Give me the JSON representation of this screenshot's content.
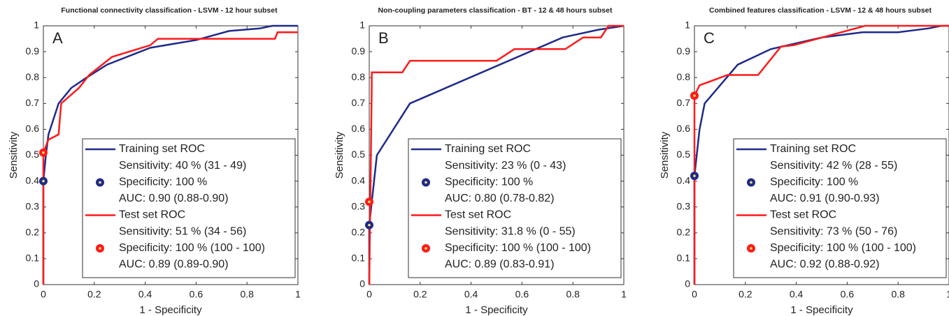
{
  "chart_data": [
    {
      "type": "line",
      "title": "Functional connectivity classification - LSVM - 12 hour subset",
      "label": "A",
      "xlabel": "1 - Specificity",
      "ylabel": "Sensitivity",
      "xlim": [
        0,
        1
      ],
      "ylim": [
        0,
        1
      ],
      "xticks": [
        0,
        0.2,
        0.4,
        0.6,
        0.8,
        1
      ],
      "yticks": [
        0,
        0.1,
        0.2,
        0.3,
        0.4,
        0.5,
        0.6,
        0.7,
        0.8,
        0.9,
        1
      ],
      "series": [
        {
          "name": "Training set ROC",
          "color": "#1f2a8c",
          "x": [
            0,
            0,
            0.01,
            0.02,
            0.06,
            0.11,
            0.17,
            0.25,
            0.42,
            0.6,
            0.73,
            0.85,
            0.9,
            0.95,
            1
          ],
          "y": [
            0,
            0.4,
            0.5,
            0.58,
            0.7,
            0.76,
            0.8,
            0.85,
            0.915,
            0.945,
            0.98,
            0.99,
            1,
            1,
            1
          ],
          "point": {
            "x": 0,
            "y": 0.4
          },
          "legend_lines": [
            "Sensitivity: 40 % (31 - 49)",
            "Specificity: 100 %",
            "AUC: 0.90 (0.88-0.90)"
          ]
        },
        {
          "name": "Test set ROC",
          "color": "#ff1a1a",
          "x": [
            0,
            0,
            0.02,
            0.06,
            0.07,
            0.14,
            0.18,
            0.27,
            0.42,
            0.45,
            0.91,
            0.92,
            1
          ],
          "y": [
            0,
            0.51,
            0.56,
            0.58,
            0.7,
            0.76,
            0.81,
            0.88,
            0.925,
            0.95,
            0.95,
            0.975,
            0.975
          ],
          "point": {
            "x": 0,
            "y": 0.51
          },
          "legend_lines": [
            "Sensitivity: 51 % (34 - 56)",
            "Specificity: 100 % (100 - 100)",
            "AUC: 0.89 (0.89-0.90)"
          ]
        }
      ]
    },
    {
      "type": "line",
      "title": "Non-coupling parameters classification - BT - 12 & 48 hours subset",
      "label": "B",
      "xlabel": "1 - Specificity",
      "ylabel": "Sensitivity",
      "xlim": [
        0,
        1
      ],
      "ylim": [
        0,
        1
      ],
      "xticks": [
        0,
        0.2,
        0.4,
        0.6,
        0.8,
        1
      ],
      "yticks": [
        0,
        0.1,
        0.2,
        0.3,
        0.4,
        0.5,
        0.6,
        0.7,
        0.8,
        0.9,
        1
      ],
      "series": [
        {
          "name": "Training set ROC",
          "color": "#1f2a8c",
          "x": [
            0,
            0,
            0.03,
            0.16,
            0.76,
            0.9,
            1
          ],
          "y": [
            0,
            0.23,
            0.5,
            0.7,
            0.955,
            0.985,
            1
          ],
          "point": {
            "x": 0,
            "y": 0.23
          },
          "legend_lines": [
            "Sensitivity: 23 % (0 - 43)",
            "Specificity: 100 %",
            "AUC: 0.80 (0.78-0.82)"
          ]
        },
        {
          "name": "Test set ROC",
          "color": "#ff1a1a",
          "x": [
            0,
            0.01,
            0.01,
            0.13,
            0.16,
            0.5,
            0.57,
            0.77,
            0.84,
            0.91,
            0.94,
            1
          ],
          "y": [
            0,
            0.77,
            0.82,
            0.82,
            0.865,
            0.865,
            0.91,
            0.91,
            0.955,
            0.955,
            1,
            1
          ],
          "point": {
            "x": 0,
            "y": 0.32
          },
          "legend_lines": [
            "Sensitivity: 31.8 % (0 - 55)",
            "Specificity: 100 % (100 - 100)",
            "AUC: 0.89 (0.83-0.91)"
          ]
        }
      ]
    },
    {
      "type": "line",
      "title": "Combined features classification - LSVM - 12 & 48 hours subset",
      "label": "C",
      "xlabel": "1 - Specificity",
      "ylabel": "Sensitivity",
      "xlim": [
        0,
        1
      ],
      "ylim": [
        0,
        1
      ],
      "xticks": [
        0,
        0.2,
        0.4,
        0.6,
        0.8,
        1
      ],
      "yticks": [
        0,
        0.1,
        0.2,
        0.3,
        0.4,
        0.5,
        0.6,
        0.7,
        0.8,
        0.9,
        1
      ],
      "series": [
        {
          "name": "Training set ROC",
          "color": "#1f2a8c",
          "x": [
            0,
            0,
            0.02,
            0.04,
            0.17,
            0.3,
            0.5,
            0.66,
            0.8,
            0.92,
            0.97,
            1
          ],
          "y": [
            0,
            0.42,
            0.6,
            0.7,
            0.85,
            0.91,
            0.955,
            0.975,
            0.975,
            0.99,
            1,
            1
          ],
          "point": {
            "x": 0,
            "y": 0.42
          },
          "legend_lines": [
            "Sensitivity: 42 % (28 - 55)",
            "Specificity: 100 %",
            "AUC: 0.91 (0.90-0.93)"
          ]
        },
        {
          "name": "Test set ROC",
          "color": "#ff1a1a",
          "x": [
            0,
            0,
            0.02,
            0.13,
            0.25,
            0.34,
            0.39,
            0.67,
            1
          ],
          "y": [
            0,
            0.73,
            0.77,
            0.81,
            0.81,
            0.92,
            0.925,
            1,
            1
          ],
          "point": {
            "x": 0,
            "y": 0.73
          },
          "legend_lines": [
            "Sensitivity: 73 % (50 - 76)",
            "Specificity: 100 % (100 - 100)",
            "AUC: 0.92 (0.88-0.92)"
          ]
        }
      ]
    }
  ]
}
